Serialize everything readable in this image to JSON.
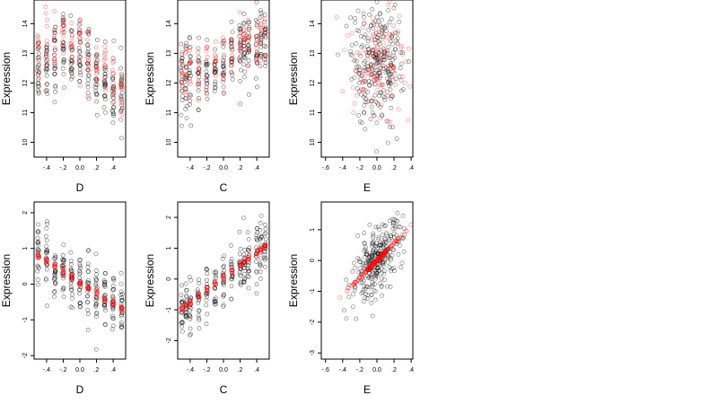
{
  "chart_data": [
    {
      "type": "scatter",
      "row": 1,
      "xlabel": "D",
      "ylabel": "Expression",
      "xlim": [
        -0.55,
        0.55
      ],
      "ylim": [
        9.5,
        14.8
      ],
      "xticks": [
        -0.4,
        -0.2,
        0.0,
        0.2,
        0.4
      ],
      "yticks": [
        10,
        11,
        12,
        13,
        14
      ],
      "grid": false,
      "legend": "none",
      "colors": {
        "observed": "#000000",
        "fitted": "#ff0000"
      },
      "x_levels": [
        -0.5,
        -0.4,
        -0.3,
        -0.2,
        -0.1,
        0.0,
        0.1,
        0.2,
        0.3,
        0.4,
        0.5
      ],
      "series": [
        {
          "role": "observed",
          "points_per_level": 22,
          "centers": [
            12.6,
            12.7,
            12.8,
            13.2,
            13.0,
            12.8,
            12.8,
            12.3,
            12.1,
            11.7,
            11.6
          ],
          "spread": 1.0
        },
        {
          "role": "fitted",
          "points_per_level": 12,
          "centers": [
            13.0,
            13.1,
            13.2,
            13.5,
            13.3,
            13.2,
            13.1,
            12.7,
            12.3,
            11.9,
            11.6
          ],
          "spread": 0.9
        }
      ]
    },
    {
      "type": "scatter",
      "row": 1,
      "xlabel": "C",
      "ylabel": "Expression",
      "xlim": [
        -0.55,
        0.55
      ],
      "ylim": [
        9.5,
        14.8
      ],
      "xticks": [
        -0.4,
        -0.2,
        0.0,
        0.2,
        0.4
      ],
      "yticks": [
        10,
        11,
        12,
        13,
        14
      ],
      "grid": false,
      "legend": "none",
      "colors": {
        "observed": "#000000",
        "fitted": "#ff0000"
      },
      "x_levels": [
        -0.5,
        -0.45,
        -0.4,
        -0.3,
        -0.2,
        -0.1,
        0.0,
        0.1,
        0.2,
        0.25,
        0.3,
        0.4,
        0.45,
        0.5
      ],
      "series": [
        {
          "role": "observed",
          "points_per_level": 18,
          "centers": [
            12.0,
            12.1,
            12.1,
            12.2,
            12.3,
            12.4,
            12.6,
            12.8,
            13.0,
            13.1,
            13.2,
            13.3,
            13.5,
            13.6
          ],
          "spread": 1.0
        },
        {
          "role": "fitted",
          "points_per_level": 10,
          "centers": [
            12.3,
            12.4,
            12.4,
            12.4,
            12.5,
            12.6,
            12.8,
            13.0,
            13.3,
            13.4,
            13.4,
            13.5,
            13.7,
            13.8
          ],
          "spread": 0.8
        }
      ]
    },
    {
      "type": "scatter",
      "row": 1,
      "xlabel": "E",
      "ylabel": "Expression",
      "xlim": [
        -0.65,
        0.42
      ],
      "ylim": [
        9.5,
        14.8
      ],
      "xticks": [
        -0.6,
        -0.4,
        -0.2,
        0.0,
        0.2,
        0.4
      ],
      "yticks": [
        10,
        11,
        12,
        13,
        14
      ],
      "grid": false,
      "legend": "none",
      "colors": {
        "observed": "#000000",
        "fitted": "#ff0000"
      },
      "cloud": {
        "observed": {
          "n": 260,
          "x_mean": 0.0,
          "x_sd": 0.16,
          "y_mean": 12.6,
          "y_sd": 1.0
        },
        "fitted": {
          "n": 120,
          "x_mean": 0.0,
          "x_sd": 0.18,
          "y_mean": 12.7,
          "y_sd": 0.9
        }
      }
    },
    {
      "type": "scatter",
      "row": 2,
      "xlabel": "D",
      "ylabel": "Expression",
      "xlim": [
        -0.55,
        0.55
      ],
      "ylim": [
        -2.1,
        2.3
      ],
      "xticks": [
        -0.4,
        -0.2,
        0.0,
        0.2,
        0.4
      ],
      "yticks": [
        -2,
        -1,
        0,
        1,
        2
      ],
      "grid": false,
      "legend": "none",
      "colors": {
        "observed": "#000000",
        "fitted": "#ff0000"
      },
      "x_levels": [
        -0.5,
        -0.4,
        -0.3,
        -0.2,
        -0.1,
        0.0,
        0.1,
        0.2,
        0.3,
        0.4,
        0.5
      ],
      "fit_line": {
        "intercept": 0.05,
        "slope": -1.5
      },
      "series": [
        {
          "role": "observed",
          "points_per_level": 22,
          "spread": 0.7
        },
        {
          "role": "fitted",
          "points_per_level": 10,
          "spread": 0.05
        }
      ]
    },
    {
      "type": "scatter",
      "row": 2,
      "xlabel": "C",
      "ylabel": "Expression",
      "xlim": [
        -0.55,
        0.55
      ],
      "ylim": [
        -2.6,
        2.5
      ],
      "xticks": [
        -0.4,
        -0.2,
        0.0,
        0.2,
        0.4
      ],
      "yticks": [
        -2,
        -1,
        0,
        1,
        2
      ],
      "grid": false,
      "legend": "none",
      "colors": {
        "observed": "#000000",
        "fitted": "#ff0000"
      },
      "x_levels": [
        -0.5,
        -0.45,
        -0.4,
        -0.3,
        -0.2,
        -0.1,
        0.0,
        0.1,
        0.2,
        0.25,
        0.3,
        0.4,
        0.45,
        0.5
      ],
      "fit_line": {
        "intercept": 0.05,
        "slope": 2.0
      },
      "series": [
        {
          "role": "observed",
          "points_per_level": 18,
          "spread": 0.7
        },
        {
          "role": "fitted",
          "points_per_level": 8,
          "spread": 0.05
        }
      ]
    },
    {
      "type": "scatter",
      "row": 2,
      "xlabel": "E",
      "ylabel": "Expression",
      "xlim": [
        -0.65,
        0.42
      ],
      "ylim": [
        -3.2,
        1.9
      ],
      "xticks": [
        -0.6,
        -0.4,
        -0.2,
        0.0,
        0.2,
        0.4
      ],
      "yticks": [
        -3,
        -2,
        -1,
        0,
        1
      ],
      "grid": false,
      "legend": "none",
      "colors": {
        "observed": "#000000",
        "fitted": "#ff0000"
      },
      "fit_line": {
        "intercept": 0.0,
        "slope": 2.8
      },
      "cloud": {
        "observed": {
          "n": 280,
          "x_mean": 0.0,
          "x_sd": 0.15,
          "resid_sd": 0.5
        },
        "fitted": {
          "n": 150,
          "x_mean": 0.0,
          "x_sd": 0.16,
          "resid_sd": 0.03
        }
      }
    }
  ]
}
